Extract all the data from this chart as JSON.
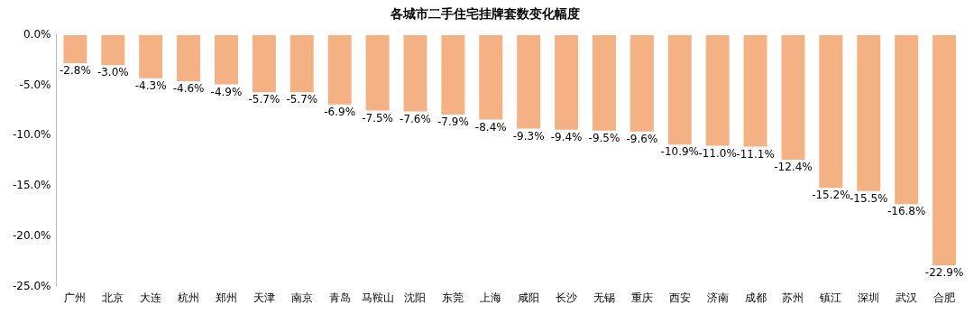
{
  "chart_data": {
    "type": "bar",
    "title": "各城市二手住宅挂牌套数变化幅度",
    "categories": [
      "广州",
      "北京",
      "大连",
      "杭州",
      "郑州",
      "天津",
      "南京",
      "青岛",
      "马鞍山",
      "沈阳",
      "东莞",
      "上海",
      "咸阳",
      "长沙",
      "无锡",
      "重庆",
      "西安",
      "济南",
      "成都",
      "苏州",
      "镇江",
      "深圳",
      "武汉",
      "合肥"
    ],
    "values": [
      -2.8,
      -3.0,
      -4.3,
      -4.6,
      -4.9,
      -5.7,
      -5.7,
      -6.9,
      -7.5,
      -7.6,
      -7.9,
      -8.4,
      -9.3,
      -9.4,
      -9.5,
      -9.6,
      -10.9,
      -11.0,
      -11.1,
      -12.4,
      -15.2,
      -15.5,
      -16.8,
      -22.9
    ],
    "value_labels": [
      "-2.8%",
      "-3.0%",
      "-4.3%",
      "-4.6%",
      "-4.9%",
      "-5.7%",
      "-5.7%",
      "-6.9%",
      "-7.5%",
      "-7.6%",
      "-7.9%",
      "-8.4%",
      "-9.3%",
      "-9.4%",
      "-9.5%",
      "-9.6%",
      "-10.9%",
      "-11.0%",
      "-11.1%",
      "-12.4%",
      "-15.2%",
      "-15.5%",
      "-16.8%",
      "-22.9%"
    ],
    "color": "#f4b183",
    "ylim": [
      -25,
      0
    ],
    "yticks": [
      {
        "value": 0,
        "label": "0.0%"
      },
      {
        "value": -5,
        "label": "-5.0%"
      },
      {
        "value": -10,
        "label": "-10.0%"
      },
      {
        "value": -15,
        "label": "-15.0%"
      },
      {
        "value": -20,
        "label": "-20.0%"
      },
      {
        "value": -25,
        "label": "-25.0%"
      }
    ],
    "grid": false,
    "legend": false
  }
}
